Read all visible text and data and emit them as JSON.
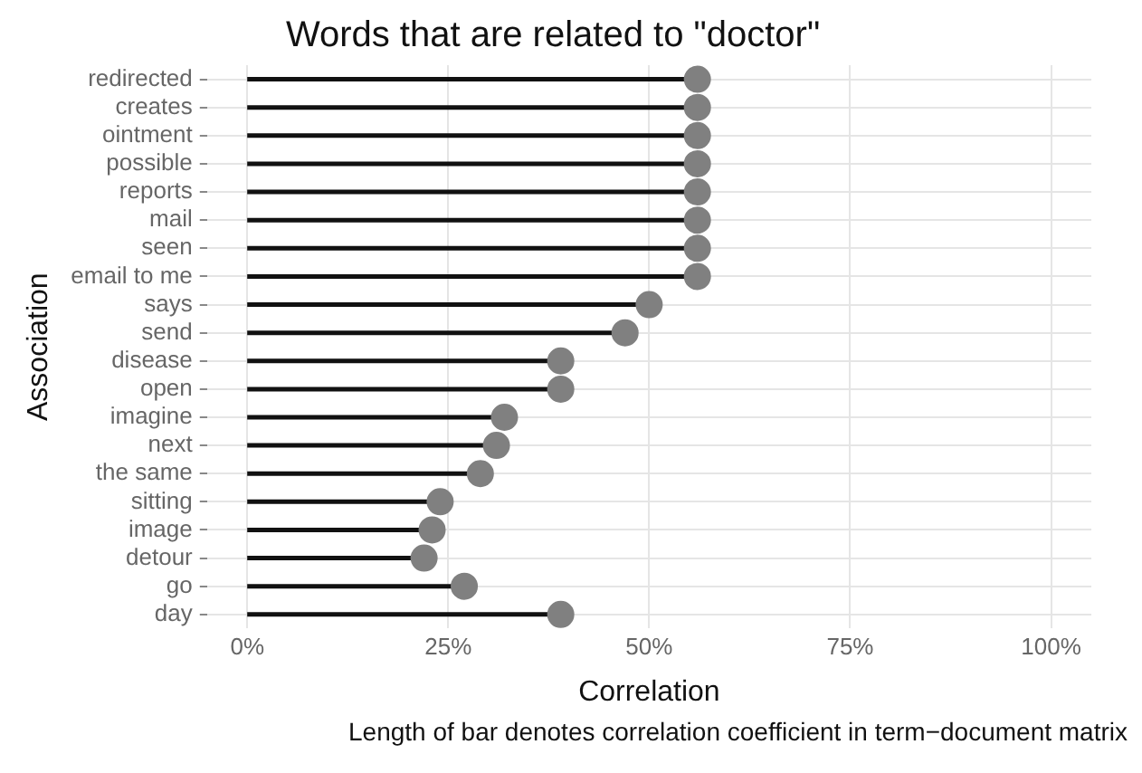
{
  "chart_data": {
    "type": "lollipop",
    "orientation": "horizontal",
    "title": "Words that are related to \"doctor\"",
    "xlabel": "Correlation",
    "ylabel": "Association",
    "categories": [
      "redirected",
      "creates",
      "ointment",
      "possible",
      "reports",
      "mail",
      "seen",
      "email to me",
      "says",
      "send",
      "disease",
      "open",
      "imagine",
      "next",
      "the same",
      "sitting",
      "image",
      "detour",
      "go",
      "day"
    ],
    "values": [
      0.56,
      0.56,
      0.56,
      0.56,
      0.56,
      0.56,
      0.56,
      0.56,
      0.5,
      0.47,
      0.39,
      0.39,
      0.32,
      0.31,
      0.29,
      0.24,
      0.23,
      0.22,
      0.27,
      0.39
    ],
    "color": "#808080",
    "marker": "circle",
    "grid": true,
    "legend": false,
    "xlim": [
      -0.05,
      1.05
    ],
    "xticks": [
      {
        "value": 0,
        "label": "0%"
      },
      {
        "value": 0.25,
        "label": "25%"
      },
      {
        "value": 0.5,
        "label": "50%"
      },
      {
        "value": 0.75,
        "label": "75%"
      },
      {
        "value": 1,
        "label": "100%"
      }
    ],
    "annotations": [
      "Length of bar denotes correlation coefficient in term−document matrix"
    ]
  }
}
